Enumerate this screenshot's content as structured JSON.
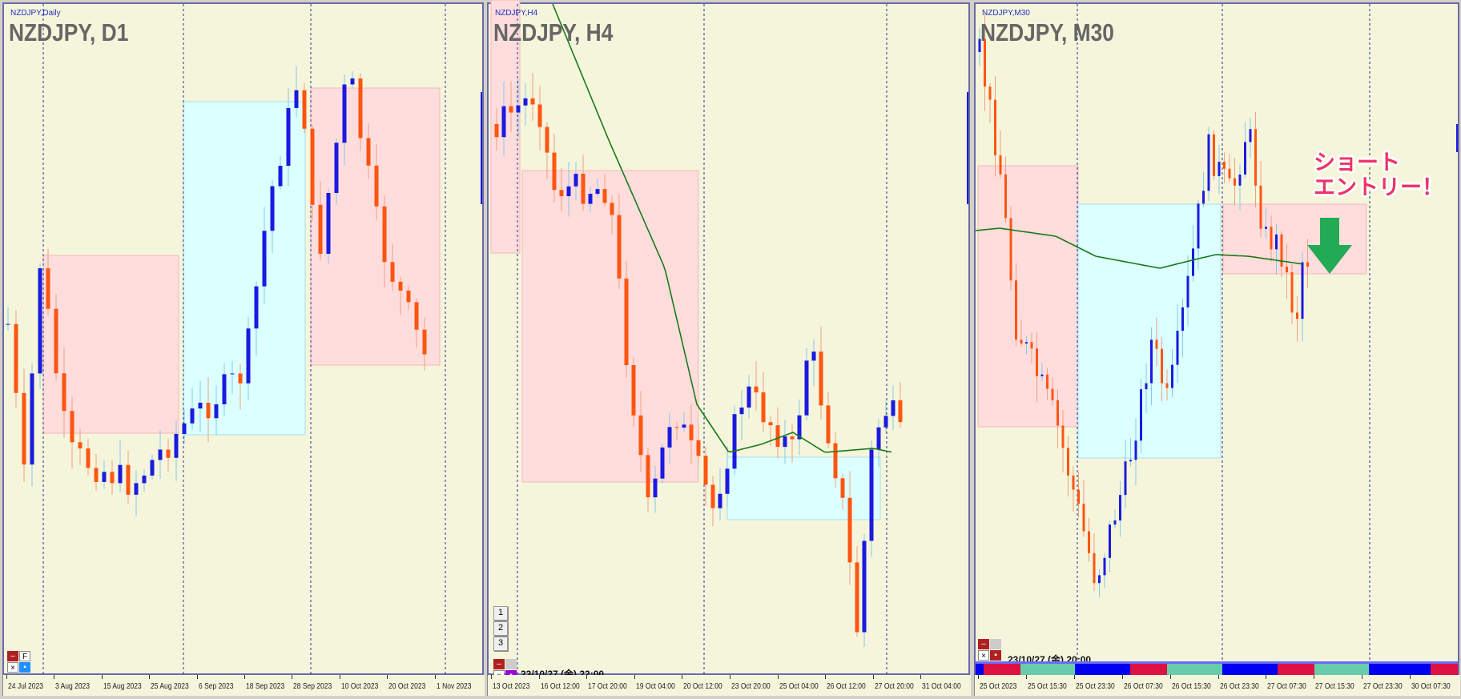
{
  "panels": [
    {
      "symbol_label": "NZDJPY,Daily",
      "title": "NZDJPY, D1",
      "axis_labels": [
        "24 Jul 2023",
        "3 Aug 2023",
        "15 Aug 2023",
        "25 Aug 2023",
        "6 Sep 2023",
        "18 Sep 2023",
        "28 Sep 2023",
        "10 Oct 2023",
        "20 Oct 2023",
        "1 Nov 2023"
      ],
      "controls": {
        "minimize": "–",
        "f": "F",
        "close": "×",
        "square": "▪"
      }
    },
    {
      "symbol_label": "NZDJPY,H4",
      "title": "NZDJPY, H4",
      "axis_labels": [
        "13 Oct 2023",
        "16 Oct 12:00",
        "17 Oct 20:00",
        "19 Oct 04:00",
        "20 Oct 12:00",
        "23 Oct 20:00",
        "25 Oct 04:00",
        "26 Oct 12:00",
        "27 Oct 20:00",
        "31 Oct 04:00"
      ],
      "buttons": [
        "1",
        "2",
        "3"
      ],
      "timestamp": "23/10/27 (金) 22:00",
      "controls": {
        "minimize": "–",
        "close": "×",
        "square": "▪"
      }
    },
    {
      "symbol_label": "NZDJPY,M30",
      "title": "NZDJPY, M30",
      "axis_labels": [
        "25 Oct 2023",
        "25 Oct 15:30",
        "25 Oct 23:30",
        "26 Oct 07:30",
        "26 Oct 15:30",
        "26 Oct 23:30",
        "27 Oct 07:30",
        "27 Oct 15:30",
        "27 Oct 23:30",
        "30 Oct 07:30"
      ],
      "timestamp": "23/10/27 (金) 20:00",
      "controls": {
        "minimize": "–",
        "close": "×",
        "square": "▪"
      }
    }
  ],
  "annotation": {
    "line1": "ショート",
    "line2": "エントリー！",
    "arrow": "down-arrow-icon",
    "color": "#ee3366",
    "arrow_color": "#22aa55"
  },
  "session_bar": [
    "blue",
    "red",
    "teal",
    "blue",
    "red",
    "teal",
    "blue",
    "red",
    "teal",
    "blue",
    "red"
  ],
  "colors": {
    "background": "#f5f5dc",
    "bull": "#1a1ae0",
    "bear": "#ff5511",
    "ma": "#1a7a1a",
    "supply_zone": "#ffdddd",
    "demand_zone": "#dcffff",
    "session_blue": "#0000ee",
    "session_red": "#dd1144",
    "session_teal": "#66ccaa"
  }
}
